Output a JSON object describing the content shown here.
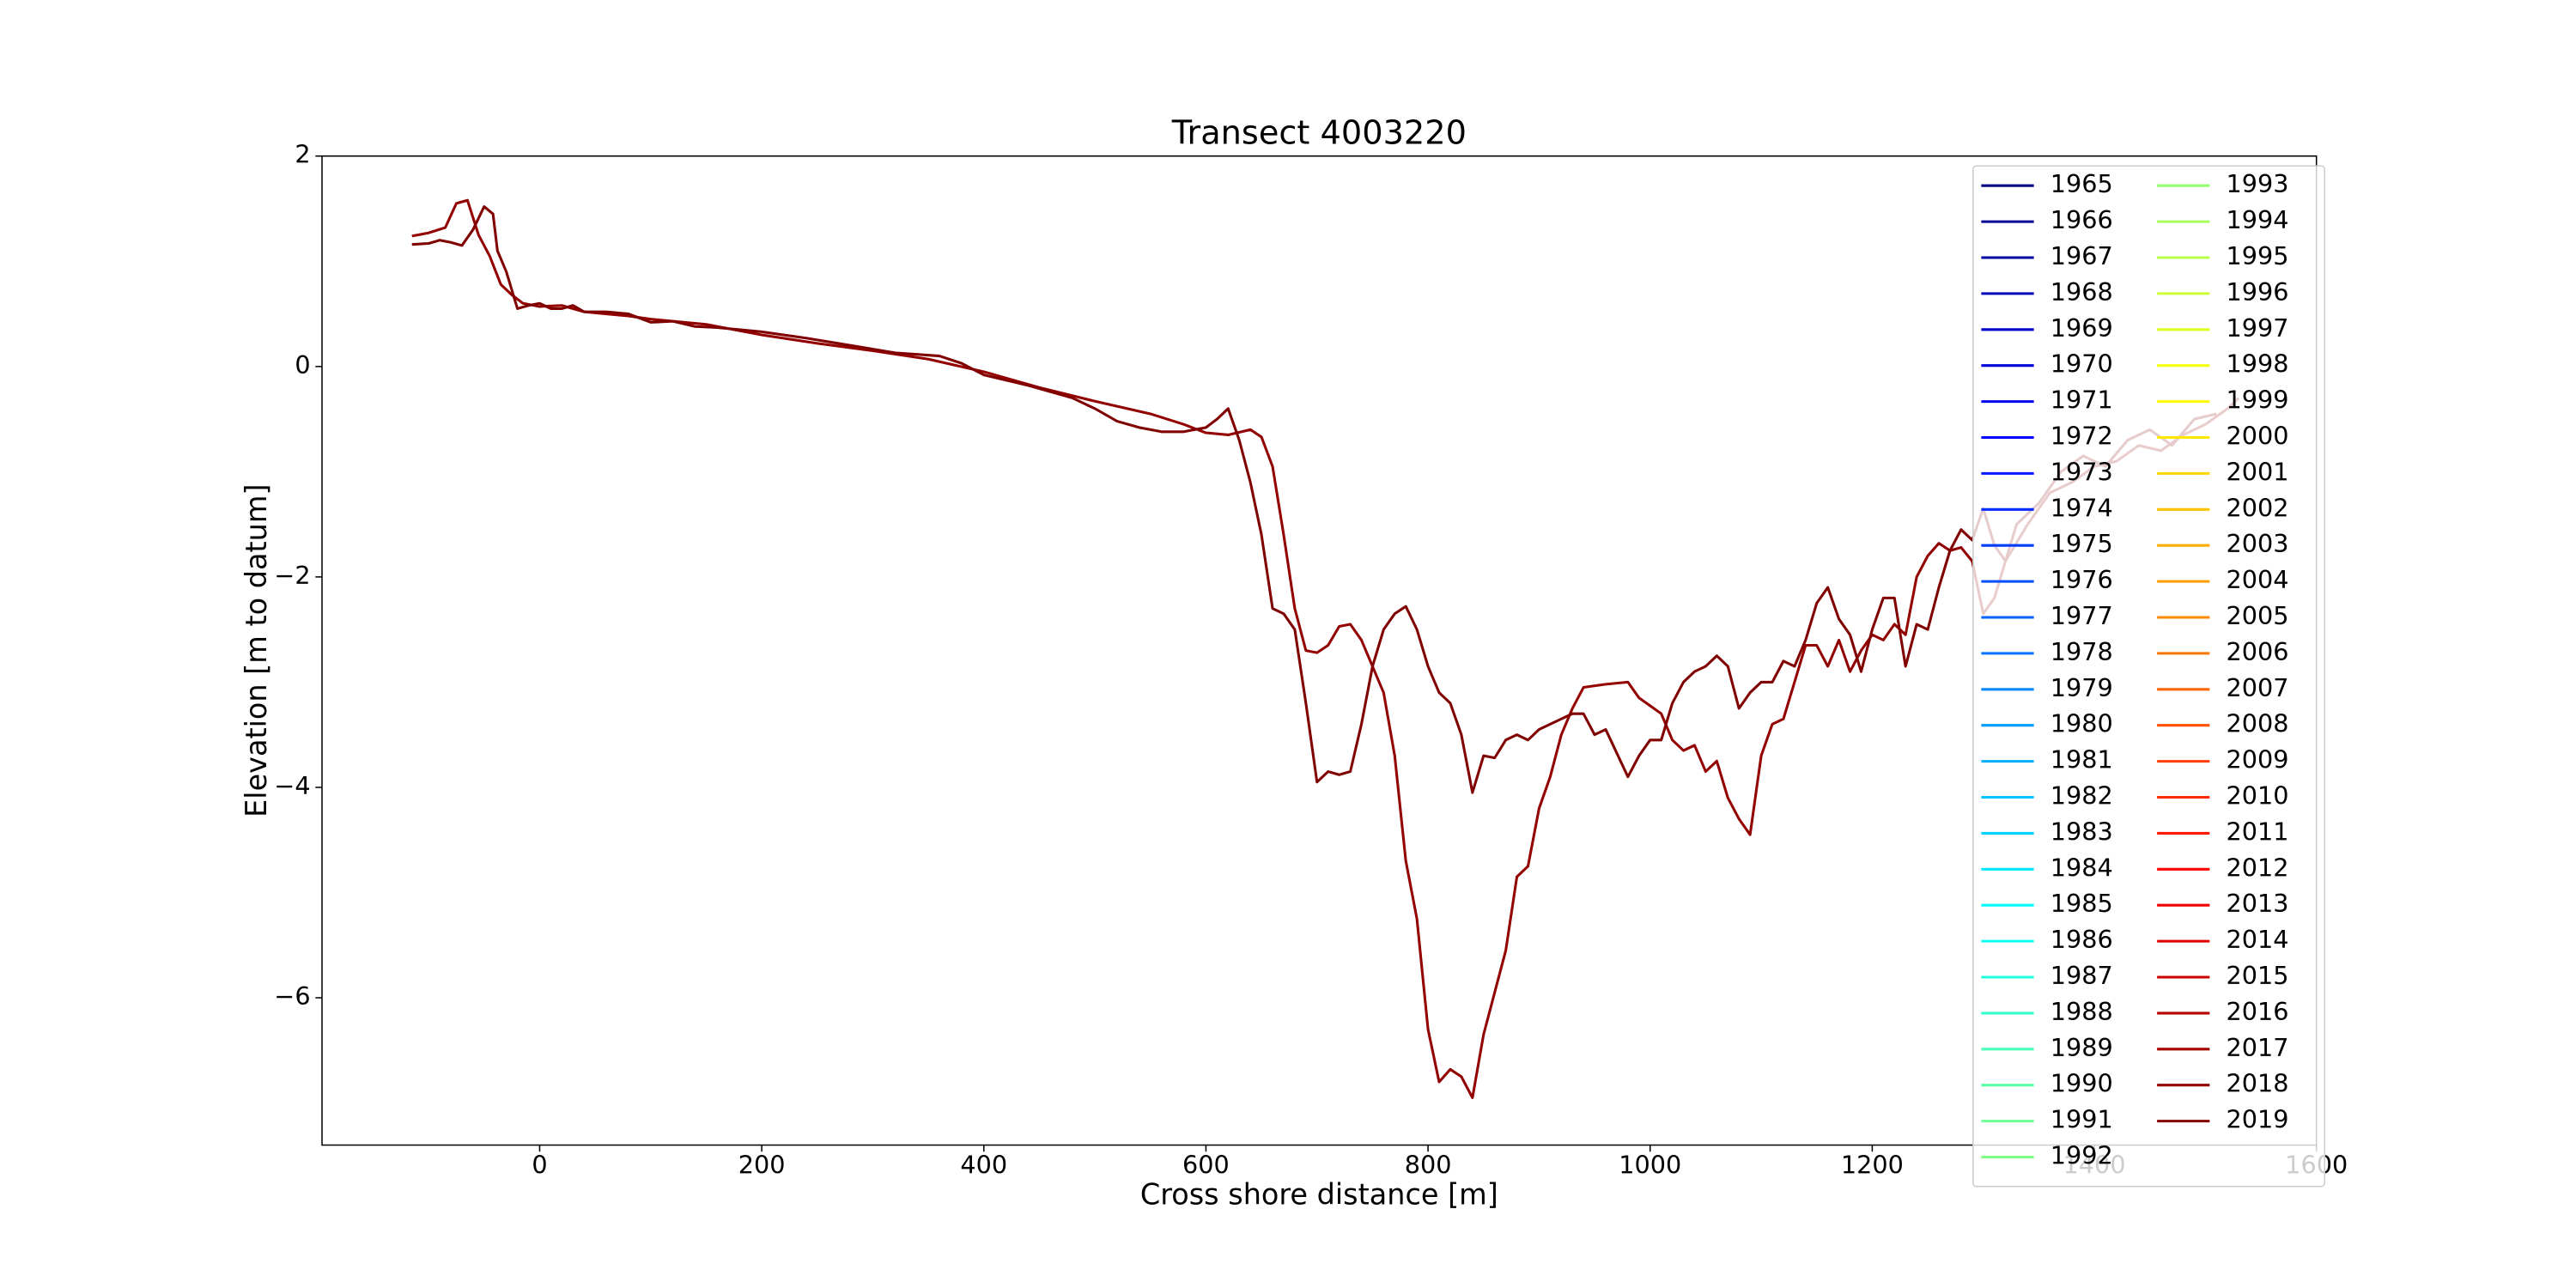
{
  "chart_data": {
    "type": "line",
    "title": "Transect 4003220",
    "xlabel": "Cross shore distance [m]",
    "ylabel": "Elevation [m to datum]",
    "xlim": [
      -196,
      1600
    ],
    "ylim": [
      -7.4,
      2
    ],
    "xticks": [
      0,
      200,
      400,
      600,
      800,
      1000,
      1200,
      1400,
      1600
    ],
    "yticks": [
      {
        "value": -6,
        "label": "−6"
      },
      {
        "value": -4,
        "label": "−4"
      },
      {
        "value": -2,
        "label": "−2"
      },
      0,
      2
    ],
    "grid": false,
    "legend": "upper right",
    "legend_columns": 2,
    "series": [
      {
        "name": "1965",
        "color": "#000080"
      },
      {
        "name": "1966",
        "color": "#000092"
      },
      {
        "name": "1967",
        "color": "#0000a5"
      },
      {
        "name": "1968",
        "color": "#0000b8"
      },
      {
        "name": "1969",
        "color": "#0000cb"
      },
      {
        "name": "1970",
        "color": "#0000de"
      },
      {
        "name": "1971",
        "color": "#0000f1"
      },
      {
        "name": "1972",
        "color": "#0005ff"
      },
      {
        "name": "1973",
        "color": "#0018ff"
      },
      {
        "name": "1974",
        "color": "#002bff"
      },
      {
        "name": "1975",
        "color": "#003dff"
      },
      {
        "name": "1976",
        "color": "#0050ff"
      },
      {
        "name": "1977",
        "color": "#0063ff"
      },
      {
        "name": "1978",
        "color": "#0076ff"
      },
      {
        "name": "1979",
        "color": "#0089ff"
      },
      {
        "name": "1980",
        "color": "#009cff"
      },
      {
        "name": "1981",
        "color": "#00aeff"
      },
      {
        "name": "1982",
        "color": "#00c1ff"
      },
      {
        "name": "1983",
        "color": "#00d4ff"
      },
      {
        "name": "1984",
        "color": "#00e7ff"
      },
      {
        "name": "1985",
        "color": "#00faff"
      },
      {
        "name": "1986",
        "color": "#0efff1"
      },
      {
        "name": "1987",
        "color": "#21ffde"
      },
      {
        "name": "1988",
        "color": "#34ffcb"
      },
      {
        "name": "1989",
        "color": "#47ffb8"
      },
      {
        "name": "1990",
        "color": "#5affa5"
      },
      {
        "name": "1991",
        "color": "#6dff92"
      },
      {
        "name": "1992",
        "color": "#80ff80"
      },
      {
        "name": "1993",
        "color": "#92ff6d"
      },
      {
        "name": "1994",
        "color": "#a5ff5a"
      },
      {
        "name": "1995",
        "color": "#b8ff47"
      },
      {
        "name": "1996",
        "color": "#cbff34"
      },
      {
        "name": "1997",
        "color": "#deff21"
      },
      {
        "name": "1998",
        "color": "#f1ff0e"
      },
      {
        "name": "1999",
        "color": "#fffa00"
      },
      {
        "name": "2000",
        "color": "#ffe700"
      },
      {
        "name": "2001",
        "color": "#ffd400"
      },
      {
        "name": "2002",
        "color": "#ffc100"
      },
      {
        "name": "2003",
        "color": "#ffae00"
      },
      {
        "name": "2004",
        "color": "#ff9c00"
      },
      {
        "name": "2005",
        "color": "#ff8900"
      },
      {
        "name": "2006",
        "color": "#ff7600"
      },
      {
        "name": "2007",
        "color": "#ff6300"
      },
      {
        "name": "2008",
        "color": "#ff5000"
      },
      {
        "name": "2009",
        "color": "#ff3d00"
      },
      {
        "name": "2010",
        "color": "#ff2b00"
      },
      {
        "name": "2011",
        "color": "#ff1800"
      },
      {
        "name": "2012",
        "color": "#ff0500"
      },
      {
        "name": "2013",
        "color": "#f10000"
      },
      {
        "name": "2014",
        "color": "#de0000"
      },
      {
        "name": "2015",
        "color": "#cb0000"
      },
      {
        "name": "2016",
        "color": "#b80000"
      },
      {
        "name": "2017",
        "color": "#a50000"
      },
      {
        "name": "2018",
        "color": "#920000",
        "x": [
          -115,
          -100,
          -85,
          -75,
          -65,
          -55,
          -45,
          -35,
          -25,
          -15,
          0,
          20,
          40,
          60,
          80,
          100,
          150,
          200,
          250,
          300,
          350,
          400,
          450,
          500,
          550,
          580,
          600,
          620,
          640,
          650,
          660,
          670,
          680,
          690,
          700,
          710,
          720,
          730,
          740,
          750,
          760,
          770,
          780,
          790,
          800,
          810,
          820,
          830,
          840,
          850,
          860,
          870,
          880,
          890,
          900,
          910,
          920,
          930,
          940,
          960,
          980,
          990,
          1010,
          1020,
          1030,
          1040,
          1050,
          1060,
          1070,
          1080,
          1090,
          1100,
          1110,
          1120,
          1130,
          1140,
          1150,
          1160,
          1170,
          1180,
          1190,
          1200,
          1210,
          1220,
          1230,
          1240,
          1250,
          1260,
          1270,
          1280,
          1290,
          1300,
          1310,
          1320,
          1340,
          1360,
          1380,
          1400,
          1420,
          1440,
          1460,
          1480,
          1500,
          1520,
          1530
        ],
        "values": [
          1.24,
          1.27,
          1.32,
          1.55,
          1.58,
          1.25,
          1.05,
          0.78,
          0.68,
          0.6,
          0.57,
          0.58,
          0.52,
          0.5,
          0.48,
          0.45,
          0.4,
          0.3,
          0.22,
          0.15,
          0.07,
          -0.05,
          -0.2,
          -0.33,
          -0.45,
          -0.55,
          -0.63,
          -0.65,
          -0.6,
          -0.67,
          -0.95,
          -1.6,
          -2.3,
          -2.7,
          -2.72,
          -2.65,
          -2.47,
          -2.45,
          -2.6,
          -2.85,
          -3.1,
          -3.7,
          -4.7,
          -5.25,
          -6.3,
          -6.8,
          -6.68,
          -6.75,
          -6.95,
          -6.35,
          -5.95,
          -5.55,
          -4.85,
          -4.75,
          -4.2,
          -3.9,
          -3.5,
          -3.25,
          -3.05,
          -3.02,
          -3.0,
          -3.15,
          -3.3,
          -3.55,
          -3.65,
          -3.6,
          -3.85,
          -3.75,
          -4.1,
          -4.3,
          -4.45,
          -3.7,
          -3.4,
          -3.35,
          -3.0,
          -2.65,
          -2.65,
          -2.85,
          -2.6,
          -2.9,
          -2.7,
          -2.55,
          -2.6,
          -2.45,
          -2.55,
          -2.0,
          -1.8,
          -1.68,
          -1.75,
          -1.72,
          -1.85,
          -2.35,
          -2.2,
          -1.85,
          -1.5,
          -1.2,
          -1.1,
          -0.95,
          -0.9,
          -0.75,
          -0.8,
          -0.65,
          -0.55,
          -0.4,
          -0.3
        ]
      },
      {
        "name": "2019",
        "color": "#800000",
        "x": [
          -115,
          -100,
          -90,
          -80,
          -70,
          -60,
          -50,
          -42,
          -38,
          -30,
          -20,
          -10,
          0,
          10,
          20,
          30,
          40,
          60,
          80,
          100,
          120,
          140,
          160,
          180,
          200,
          240,
          280,
          320,
          360,
          380,
          400,
          440,
          480,
          500,
          520,
          540,
          560,
          580,
          600,
          610,
          620,
          630,
          640,
          650,
          660,
          670,
          680,
          690,
          700,
          710,
          720,
          730,
          740,
          750,
          760,
          770,
          780,
          790,
          800,
          810,
          820,
          830,
          840,
          850,
          860,
          870,
          880,
          890,
          900,
          920,
          930,
          940,
          950,
          960,
          980,
          990,
          1000,
          1010,
          1020,
          1030,
          1040,
          1050,
          1060,
          1070,
          1080,
          1090,
          1100,
          1110,
          1120,
          1130,
          1140,
          1150,
          1160,
          1170,
          1180,
          1190,
          1200,
          1210,
          1220,
          1230,
          1240,
          1250,
          1260,
          1270,
          1280,
          1290,
          1300,
          1310,
          1320,
          1330,
          1350,
          1370,
          1390,
          1410,
          1430,
          1450,
          1470,
          1490,
          1510
        ],
        "values": [
          1.16,
          1.17,
          1.2,
          1.18,
          1.15,
          1.3,
          1.52,
          1.45,
          1.1,
          0.9,
          0.55,
          0.58,
          0.6,
          0.55,
          0.55,
          0.58,
          0.52,
          0.52,
          0.5,
          0.42,
          0.43,
          0.38,
          0.37,
          0.35,
          0.33,
          0.27,
          0.2,
          0.13,
          0.1,
          0.03,
          -0.08,
          -0.18,
          -0.3,
          -0.4,
          -0.52,
          -0.58,
          -0.62,
          -0.62,
          -0.58,
          -0.5,
          -0.4,
          -0.7,
          -1.1,
          -1.6,
          -2.3,
          -2.35,
          -2.5,
          -3.2,
          -3.95,
          -3.85,
          -3.88,
          -3.85,
          -3.4,
          -2.85,
          -2.5,
          -2.35,
          -2.28,
          -2.5,
          -2.85,
          -3.1,
          -3.2,
          -3.5,
          -4.05,
          -3.7,
          -3.72,
          -3.55,
          -3.5,
          -3.55,
          -3.45,
          -3.35,
          -3.3,
          -3.3,
          -3.5,
          -3.45,
          -3.9,
          -3.7,
          -3.55,
          -3.55,
          -3.2,
          -3.0,
          -2.9,
          -2.85,
          -2.75,
          -2.85,
          -3.25,
          -3.1,
          -3.0,
          -3.0,
          -2.8,
          -2.85,
          -2.6,
          -2.25,
          -2.1,
          -2.4,
          -2.55,
          -2.9,
          -2.5,
          -2.2,
          -2.2,
          -2.85,
          -2.45,
          -2.5,
          -2.1,
          -1.75,
          -1.55,
          -1.65,
          -1.35,
          -1.7,
          -1.85,
          -1.5,
          -1.3,
          -1.0,
          -0.85,
          -0.95,
          -0.7,
          -0.6,
          -0.75,
          -0.5,
          -0.45
        ]
      }
    ]
  }
}
